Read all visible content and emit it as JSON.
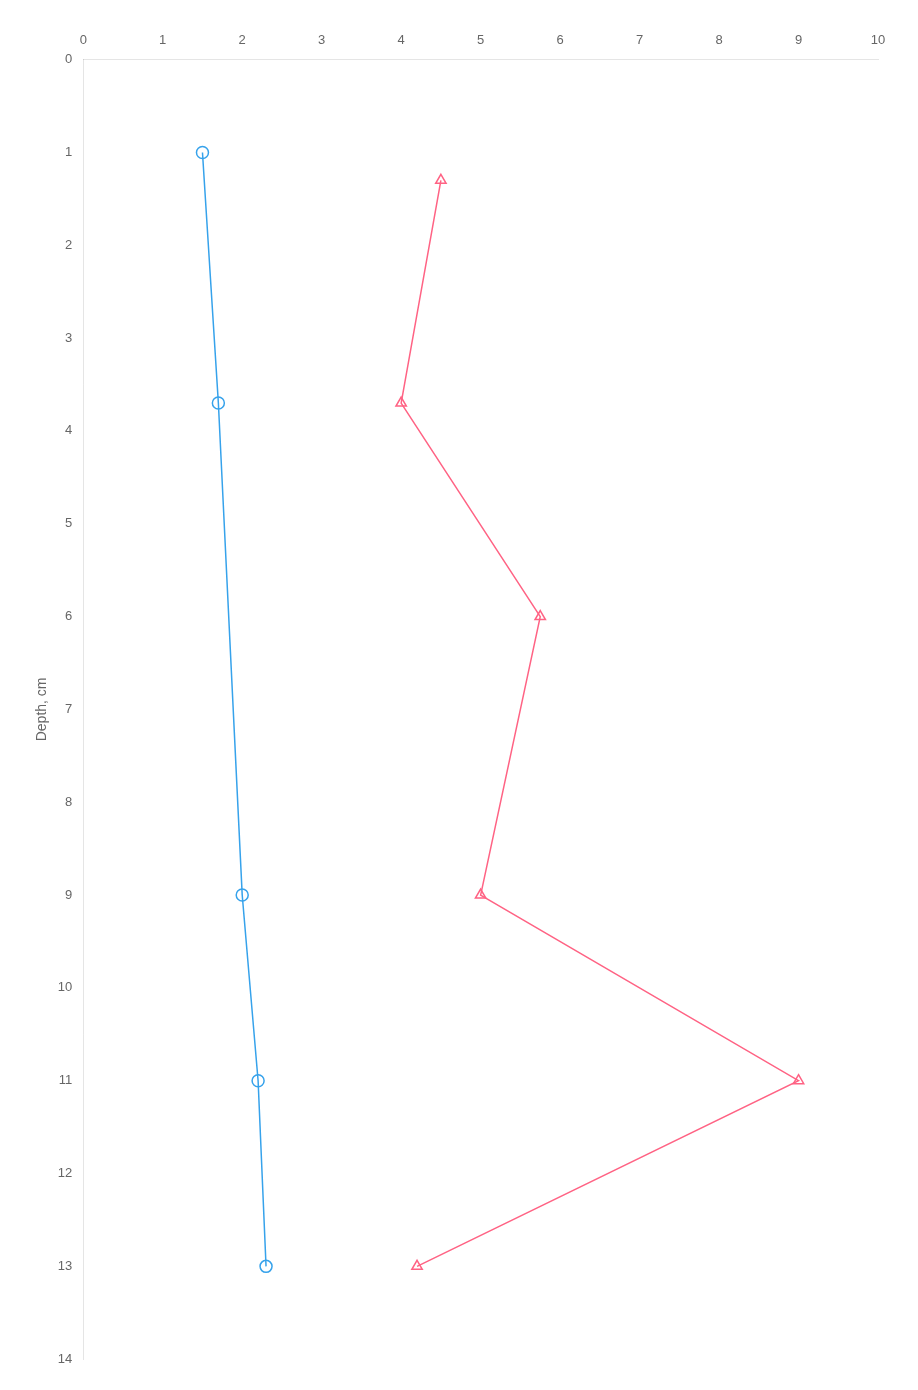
{
  "chart_data": {
    "type": "line",
    "ylabel": "Depth, cm",
    "series": [
      {
        "x": [
          1.5,
          1.7,
          2.0,
          2.2,
          2.3
        ],
        "values": [
          1.0,
          3.7,
          9.0,
          11.0,
          13.0
        ],
        "marker": "circle"
      },
      {
        "x": [
          4.5,
          4.0,
          5.75,
          5.0,
          9.0,
          4.2
        ],
        "values": [
          1.3,
          3.7,
          6.0,
          9.0,
          11.0,
          13.0
        ],
        "marker": "triangle"
      }
    ],
    "xlim": [
      0,
      10
    ],
    "xticks": [
      0,
      1,
      2,
      3,
      4,
      5,
      6,
      7,
      8,
      9,
      10
    ],
    "ylim": [
      0,
      14
    ],
    "yticks": [
      0,
      1,
      2,
      3,
      4,
      5,
      6,
      7,
      8,
      9,
      10,
      11,
      12,
      13,
      14
    ],
    "grid": false
  }
}
